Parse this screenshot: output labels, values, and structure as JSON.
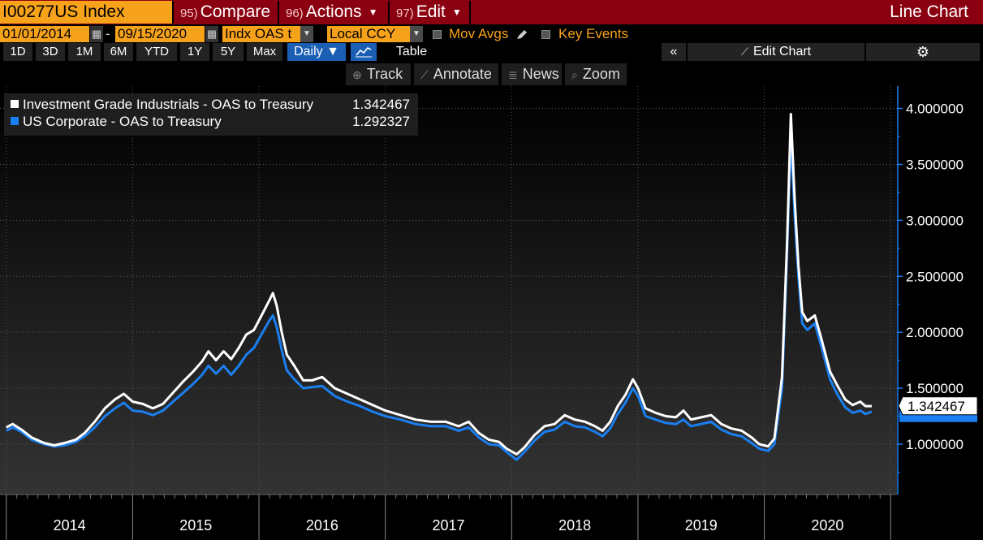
{
  "header": {
    "ticker": "I00277US Index",
    "compare": {
      "num": "95)",
      "label": "Compare"
    },
    "actions": {
      "num": "96)",
      "label": "Actions"
    },
    "edit": {
      "num": "97)",
      "label": "Edit"
    },
    "chart_title": "Line Chart"
  },
  "controls": {
    "start_date": "01/01/2014",
    "end_date": "09/15/2020",
    "field": "Indx OAS t",
    "currency": "Local CCY",
    "mov_avgs": "Mov Avgs",
    "key_events": "Key Events"
  },
  "periods": [
    "1D",
    "3D",
    "1M",
    "6M",
    "YTD",
    "1Y",
    "5Y",
    "Max"
  ],
  "frequency": "Daily ▼",
  "table_label": "Table",
  "edit_chart": "Edit Chart",
  "tools": {
    "track": "Track",
    "annotate": "Annotate",
    "news": "News",
    "zoom": "Zoom"
  },
  "colors": {
    "accent": "#f7a21b",
    "header_red": "#8b0010",
    "series_white": "#ffffff",
    "series_blue": "#1a7ff0",
    "button_blue": "#1a5fb4"
  },
  "icons": {
    "calendar": "calendar-icon",
    "pencil": "pencil-icon",
    "gear": "gear-icon",
    "collapse": "double-chevron-left-icon",
    "line_chart": "line-chart-icon"
  },
  "chart_data": {
    "type": "line",
    "ylim": [
      0.55,
      4.2
    ],
    "yticks": [
      "4.000000",
      "3.500000",
      "3.000000",
      "2.500000",
      "2.000000",
      "1.500000",
      "1.000000"
    ],
    "ytick_values": [
      4.0,
      3.5,
      3.0,
      2.5,
      2.0,
      1.5,
      1.0
    ],
    "xlabels": [
      "2014",
      "2015",
      "2016",
      "2017",
      "2018",
      "2019",
      "2020"
    ],
    "last_value_label": "1.342467",
    "series": [
      {
        "name": "Investment Grade Industrials - OAS to Treasury",
        "last": "1.342467",
        "color": "#ffffff",
        "points": [
          [
            2014.0,
            1.15
          ],
          [
            2014.05,
            1.18
          ],
          [
            2014.12,
            1.13
          ],
          [
            2014.2,
            1.06
          ],
          [
            2014.3,
            1.01
          ],
          [
            2014.38,
            0.99
          ],
          [
            2014.46,
            1.01
          ],
          [
            2014.55,
            1.04
          ],
          [
            2014.62,
            1.1
          ],
          [
            2014.7,
            1.2
          ],
          [
            2014.78,
            1.32
          ],
          [
            2014.86,
            1.4
          ],
          [
            2014.93,
            1.45
          ],
          [
            2015.0,
            1.38
          ],
          [
            2015.08,
            1.36
          ],
          [
            2015.16,
            1.32
          ],
          [
            2015.24,
            1.36
          ],
          [
            2015.32,
            1.46
          ],
          [
            2015.4,
            1.56
          ],
          [
            2015.48,
            1.65
          ],
          [
            2015.55,
            1.74
          ],
          [
            2015.6,
            1.83
          ],
          [
            2015.66,
            1.75
          ],
          [
            2015.72,
            1.83
          ],
          [
            2015.78,
            1.76
          ],
          [
            2015.84,
            1.86
          ],
          [
            2015.9,
            1.98
          ],
          [
            2015.96,
            2.02
          ],
          [
            2016.02,
            2.15
          ],
          [
            2016.08,
            2.28
          ],
          [
            2016.11,
            2.35
          ],
          [
            2016.14,
            2.24
          ],
          [
            2016.18,
            2.0
          ],
          [
            2016.22,
            1.8
          ],
          [
            2016.28,
            1.7
          ],
          [
            2016.35,
            1.57
          ],
          [
            2016.42,
            1.57
          ],
          [
            2016.5,
            1.6
          ],
          [
            2016.6,
            1.5
          ],
          [
            2016.7,
            1.45
          ],
          [
            2016.8,
            1.4
          ],
          [
            2016.9,
            1.35
          ],
          [
            2017.0,
            1.3
          ],
          [
            2017.12,
            1.26
          ],
          [
            2017.24,
            1.22
          ],
          [
            2017.36,
            1.2
          ],
          [
            2017.48,
            1.2
          ],
          [
            2017.58,
            1.16
          ],
          [
            2017.66,
            1.2
          ],
          [
            2017.74,
            1.1
          ],
          [
            2017.82,
            1.04
          ],
          [
            2017.9,
            1.02
          ],
          [
            2017.96,
            0.96
          ],
          [
            2018.04,
            0.91
          ],
          [
            2018.1,
            0.97
          ],
          [
            2018.18,
            1.08
          ],
          [
            2018.26,
            1.16
          ],
          [
            2018.34,
            1.18
          ],
          [
            2018.42,
            1.26
          ],
          [
            2018.5,
            1.22
          ],
          [
            2018.58,
            1.2
          ],
          [
            2018.66,
            1.16
          ],
          [
            2018.72,
            1.12
          ],
          [
            2018.78,
            1.2
          ],
          [
            2018.84,
            1.34
          ],
          [
            2018.9,
            1.44
          ],
          [
            2018.96,
            1.58
          ],
          [
            2019.0,
            1.5
          ],
          [
            2019.06,
            1.32
          ],
          [
            2019.14,
            1.28
          ],
          [
            2019.22,
            1.25
          ],
          [
            2019.3,
            1.24
          ],
          [
            2019.36,
            1.3
          ],
          [
            2019.42,
            1.22
          ],
          [
            2019.5,
            1.24
          ],
          [
            2019.58,
            1.26
          ],
          [
            2019.66,
            1.18
          ],
          [
            2019.74,
            1.14
          ],
          [
            2019.82,
            1.12
          ],
          [
            2019.9,
            1.06
          ],
          [
            2019.96,
            1.0
          ],
          [
            2020.03,
            0.98
          ],
          [
            2020.08,
            1.05
          ],
          [
            2020.14,
            1.6
          ],
          [
            2020.18,
            2.8
          ],
          [
            2020.21,
            3.95
          ],
          [
            2020.24,
            3.2
          ],
          [
            2020.27,
            2.6
          ],
          [
            2020.3,
            2.18
          ],
          [
            2020.34,
            2.1
          ],
          [
            2020.4,
            2.15
          ],
          [
            2020.45,
            1.95
          ],
          [
            2020.52,
            1.65
          ],
          [
            2020.58,
            1.52
          ],
          [
            2020.64,
            1.4
          ],
          [
            2020.7,
            1.35
          ],
          [
            2020.76,
            1.38
          ],
          [
            2020.8,
            1.34
          ],
          [
            2020.85,
            1.34
          ]
        ]
      },
      {
        "name": "US Corporate - OAS to Treasury",
        "last": "1.292327",
        "color": "#1a7ff0",
        "points": [
          [
            2014.0,
            1.12
          ],
          [
            2014.05,
            1.15
          ],
          [
            2014.12,
            1.11
          ],
          [
            2014.2,
            1.04
          ],
          [
            2014.3,
            1.0
          ],
          [
            2014.38,
            0.98
          ],
          [
            2014.46,
            0.99
          ],
          [
            2014.55,
            1.02
          ],
          [
            2014.62,
            1.07
          ],
          [
            2014.7,
            1.15
          ],
          [
            2014.78,
            1.25
          ],
          [
            2014.86,
            1.32
          ],
          [
            2014.93,
            1.37
          ],
          [
            2015.0,
            1.3
          ],
          [
            2015.08,
            1.29
          ],
          [
            2015.16,
            1.26
          ],
          [
            2015.24,
            1.3
          ],
          [
            2015.32,
            1.38
          ],
          [
            2015.4,
            1.46
          ],
          [
            2015.48,
            1.54
          ],
          [
            2015.55,
            1.62
          ],
          [
            2015.6,
            1.7
          ],
          [
            2015.66,
            1.63
          ],
          [
            2015.72,
            1.7
          ],
          [
            2015.78,
            1.62
          ],
          [
            2015.84,
            1.7
          ],
          [
            2015.9,
            1.8
          ],
          [
            2015.96,
            1.86
          ],
          [
            2016.02,
            1.98
          ],
          [
            2016.08,
            2.1
          ],
          [
            2016.11,
            2.15
          ],
          [
            2016.14,
            2.05
          ],
          [
            2016.18,
            1.84
          ],
          [
            2016.22,
            1.66
          ],
          [
            2016.28,
            1.58
          ],
          [
            2016.35,
            1.5
          ],
          [
            2016.42,
            1.51
          ],
          [
            2016.5,
            1.52
          ],
          [
            2016.6,
            1.43
          ],
          [
            2016.7,
            1.38
          ],
          [
            2016.8,
            1.34
          ],
          [
            2016.9,
            1.29
          ],
          [
            2017.0,
            1.25
          ],
          [
            2017.12,
            1.22
          ],
          [
            2017.24,
            1.18
          ],
          [
            2017.36,
            1.16
          ],
          [
            2017.48,
            1.16
          ],
          [
            2017.58,
            1.12
          ],
          [
            2017.66,
            1.15
          ],
          [
            2017.74,
            1.06
          ],
          [
            2017.82,
            1.0
          ],
          [
            2017.9,
            0.99
          ],
          [
            2017.96,
            0.93
          ],
          [
            2018.04,
            0.86
          ],
          [
            2018.1,
            0.93
          ],
          [
            2018.18,
            1.03
          ],
          [
            2018.26,
            1.11
          ],
          [
            2018.34,
            1.13
          ],
          [
            2018.42,
            1.2
          ],
          [
            2018.5,
            1.16
          ],
          [
            2018.58,
            1.15
          ],
          [
            2018.66,
            1.11
          ],
          [
            2018.72,
            1.07
          ],
          [
            2018.78,
            1.14
          ],
          [
            2018.84,
            1.27
          ],
          [
            2018.9,
            1.37
          ],
          [
            2018.96,
            1.5
          ],
          [
            2019.0,
            1.43
          ],
          [
            2019.06,
            1.25
          ],
          [
            2019.14,
            1.22
          ],
          [
            2019.22,
            1.19
          ],
          [
            2019.3,
            1.18
          ],
          [
            2019.36,
            1.22
          ],
          [
            2019.42,
            1.16
          ],
          [
            2019.5,
            1.18
          ],
          [
            2019.58,
            1.2
          ],
          [
            2019.66,
            1.13
          ],
          [
            2019.74,
            1.09
          ],
          [
            2019.82,
            1.07
          ],
          [
            2019.9,
            1.01
          ],
          [
            2019.96,
            0.96
          ],
          [
            2020.03,
            0.94
          ],
          [
            2020.08,
            1.0
          ],
          [
            2020.14,
            1.5
          ],
          [
            2020.18,
            2.7
          ],
          [
            2020.21,
            3.75
          ],
          [
            2020.24,
            3.05
          ],
          [
            2020.27,
            2.5
          ],
          [
            2020.3,
            2.08
          ],
          [
            2020.34,
            2.02
          ],
          [
            2020.4,
            2.08
          ],
          [
            2020.45,
            1.88
          ],
          [
            2020.52,
            1.58
          ],
          [
            2020.58,
            1.44
          ],
          [
            2020.64,
            1.33
          ],
          [
            2020.7,
            1.28
          ],
          [
            2020.76,
            1.3
          ],
          [
            2020.8,
            1.27
          ],
          [
            2020.85,
            1.29
          ]
        ]
      }
    ]
  }
}
